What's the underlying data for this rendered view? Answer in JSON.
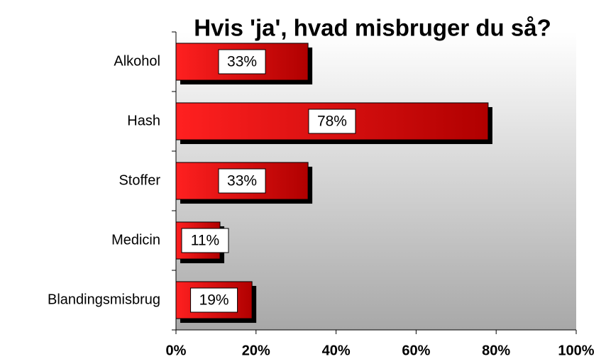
{
  "chart_data": {
    "type": "hbar",
    "title": "Hvis 'ja', hvad misbruger du så?",
    "categories": [
      "Alkohol",
      "Hash",
      "Stoffer",
      "Medicin",
      "Blandingsmisbrug"
    ],
    "values": [
      33,
      78,
      33,
      11,
      19
    ],
    "value_labels": [
      "33%",
      "78%",
      "33%",
      "11%",
      "19%"
    ],
    "color": "#e00000",
    "xlim": [
      0,
      100
    ],
    "xticks": [
      {
        "value": 0,
        "label": "0%"
      },
      {
        "value": 20,
        "label": "20%"
      },
      {
        "value": 40,
        "label": "40%"
      },
      {
        "value": 60,
        "label": "60%"
      },
      {
        "value": 80,
        "label": "80%"
      },
      {
        "value": 100,
        "label": "100%"
      }
    ]
  }
}
